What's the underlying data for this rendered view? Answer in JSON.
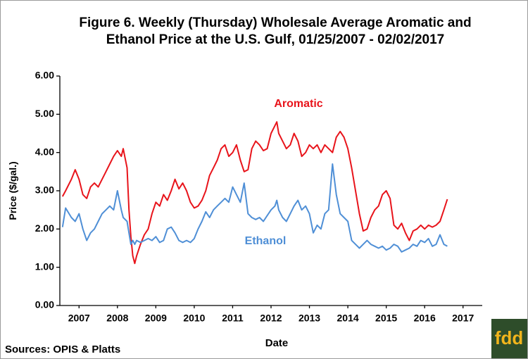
{
  "chart_data": {
    "type": "line",
    "title": "Figure 6. Weekly (Thursday) Wholesale Average Aromatic and",
    "subtitle": "Ethanol Price at the U.S. Gulf, 01/25/2007 - 02/02/2017",
    "y_label": "Price ($/gal.)",
    "x_label": "Date",
    "source": "Sources: OPIS & Platts",
    "logo": "fdd",
    "xlim": [
      2007,
      2018
    ],
    "xticks": [
      {
        "value": 2007.5,
        "label": "2007"
      },
      {
        "value": 2008.5,
        "label": "2008"
      },
      {
        "value": 2009.5,
        "label": "2009"
      },
      {
        "value": 2010.5,
        "label": "2010"
      },
      {
        "value": 2011.5,
        "label": "2011"
      },
      {
        "value": 2012.5,
        "label": "2012"
      },
      {
        "value": 2013.5,
        "label": "2013"
      },
      {
        "value": 2014.5,
        "label": "2014"
      },
      {
        "value": 2015.5,
        "label": "2015"
      },
      {
        "value": 2016.5,
        "label": "2016"
      },
      {
        "value": 2017.5,
        "label": "2017"
      }
    ],
    "ylim": [
      0,
      6
    ],
    "yticks": [
      {
        "value": 0,
        "label": "0.00"
      },
      {
        "value": 1,
        "label": "1.00"
      },
      {
        "value": 2,
        "label": "2.00"
      },
      {
        "value": 3,
        "label": "3.00"
      },
      {
        "value": 4,
        "label": "4.00"
      },
      {
        "value": 5,
        "label": "5.00"
      },
      {
        "value": 6,
        "label": "6.00"
      }
    ],
    "grid": false,
    "x": [
      2007.07,
      2007.15,
      2007.3,
      2007.4,
      2007.5,
      2007.6,
      2007.7,
      2007.8,
      2007.9,
      2008.0,
      2008.1,
      2008.2,
      2008.3,
      2008.4,
      2008.5,
      2008.6,
      2008.65,
      2008.75,
      2008.8,
      2008.85,
      2008.9,
      2008.95,
      2009.0,
      2009.1,
      2009.2,
      2009.3,
      2009.4,
      2009.5,
      2009.6,
      2009.7,
      2009.8,
      2009.9,
      2010.0,
      2010.1,
      2010.2,
      2010.3,
      2010.4,
      2010.5,
      2010.6,
      2010.7,
      2010.8,
      2010.9,
      2011.0,
      2011.1,
      2011.2,
      2011.3,
      2011.4,
      2011.5,
      2011.6,
      2011.7,
      2011.8,
      2011.9,
      2012.0,
      2012.1,
      2012.2,
      2012.3,
      2012.4,
      2012.5,
      2012.6,
      2012.65,
      2012.7,
      2012.8,
      2012.9,
      2013.0,
      2013.1,
      2013.2,
      2013.3,
      2013.4,
      2013.5,
      2013.6,
      2013.7,
      2013.8,
      2013.9,
      2014.0,
      2014.1,
      2014.2,
      2014.3,
      2014.4,
      2014.5,
      2014.6,
      2014.7,
      2014.8,
      2014.9,
      2015.0,
      2015.1,
      2015.2,
      2015.3,
      2015.4,
      2015.5,
      2015.6,
      2015.7,
      2015.8,
      2015.9,
      2016.0,
      2016.1,
      2016.2,
      2016.3,
      2016.4,
      2016.5,
      2016.6,
      2016.7,
      2016.8,
      2016.9,
      2017.0,
      2017.09
    ],
    "series": [
      {
        "name": "Aromatic",
        "color": "#e8141b",
        "values": [
          2.85,
          3.0,
          3.3,
          3.55,
          3.3,
          2.9,
          2.8,
          3.1,
          3.2,
          3.1,
          3.3,
          3.5,
          3.7,
          3.9,
          4.05,
          3.9,
          4.1,
          3.6,
          2.5,
          1.8,
          1.3,
          1.1,
          1.3,
          1.6,
          1.85,
          2.0,
          2.4,
          2.7,
          2.6,
          2.9,
          2.75,
          3.0,
          3.3,
          3.05,
          3.2,
          3.0,
          2.7,
          2.55,
          2.6,
          2.75,
          3.0,
          3.4,
          3.6,
          3.8,
          4.1,
          4.2,
          3.9,
          4.0,
          4.2,
          3.8,
          3.5,
          3.55,
          4.1,
          4.3,
          4.2,
          4.05,
          4.1,
          4.5,
          4.7,
          4.8,
          4.5,
          4.3,
          4.1,
          4.2,
          4.5,
          4.3,
          3.9,
          4.0,
          4.2,
          4.1,
          4.2,
          4.0,
          4.2,
          4.1,
          4.0,
          4.4,
          4.55,
          4.4,
          4.1,
          3.6,
          3.0,
          2.4,
          1.95,
          2.0,
          2.3,
          2.5,
          2.6,
          2.9,
          3.0,
          2.8,
          2.1,
          2.0,
          2.15,
          1.9,
          1.7,
          1.95,
          2.0,
          2.1,
          2.0,
          2.1,
          2.05,
          2.1,
          2.2,
          2.5,
          2.78
        ]
      },
      {
        "name": "Ethanol",
        "color": "#4f8fd6",
        "values": [
          2.05,
          2.55,
          2.3,
          2.2,
          2.4,
          2.0,
          1.7,
          1.9,
          2.0,
          2.2,
          2.4,
          2.5,
          2.6,
          2.5,
          3.0,
          2.5,
          2.3,
          2.2,
          1.9,
          1.6,
          1.7,
          1.6,
          1.7,
          1.65,
          1.7,
          1.75,
          1.7,
          1.8,
          1.65,
          1.7,
          2.0,
          2.05,
          1.9,
          1.7,
          1.65,
          1.7,
          1.65,
          1.75,
          2.0,
          2.2,
          2.45,
          2.3,
          2.5,
          2.6,
          2.7,
          2.8,
          2.7,
          3.1,
          2.9,
          2.7,
          3.2,
          2.4,
          2.3,
          2.25,
          2.3,
          2.2,
          2.35,
          2.5,
          2.6,
          2.75,
          2.5,
          2.3,
          2.2,
          2.4,
          2.6,
          2.75,
          2.5,
          2.6,
          2.4,
          1.9,
          2.1,
          2.0,
          2.4,
          2.5,
          3.7,
          2.9,
          2.4,
          2.3,
          2.2,
          1.7,
          1.6,
          1.5,
          1.6,
          1.7,
          1.6,
          1.55,
          1.5,
          1.55,
          1.45,
          1.5,
          1.6,
          1.55,
          1.4,
          1.45,
          1.5,
          1.6,
          1.55,
          1.7,
          1.65,
          1.75,
          1.55,
          1.6,
          1.85,
          1.6,
          1.55
        ]
      }
    ]
  }
}
